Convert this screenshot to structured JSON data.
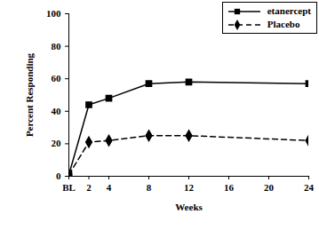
{
  "chart_data": {
    "type": "line",
    "xlabel": "Weeks",
    "ylabel": "Percent Responding",
    "x": [
      0,
      2,
      4,
      8,
      12,
      24
    ],
    "xlim": [
      0,
      24
    ],
    "xticks": [
      {
        "value": 0,
        "label": "BL"
      },
      2,
      4,
      8,
      12,
      16,
      20,
      24
    ],
    "ylim": [
      0,
      100
    ],
    "yticks": [
      0,
      20,
      40,
      60,
      80,
      100
    ],
    "legend": "top-right",
    "grid": false,
    "series": [
      {
        "name": "etanercept",
        "color": "#000000",
        "marker": "square",
        "line_style": "solid",
        "values": [
          1,
          44,
          48,
          57,
          58,
          57
        ]
      },
      {
        "name": "Placebo",
        "color": "#000000",
        "marker": "diamond",
        "line_style": "dashed",
        "values": [
          1,
          21,
          22,
          25,
          25,
          22
        ]
      }
    ]
  }
}
